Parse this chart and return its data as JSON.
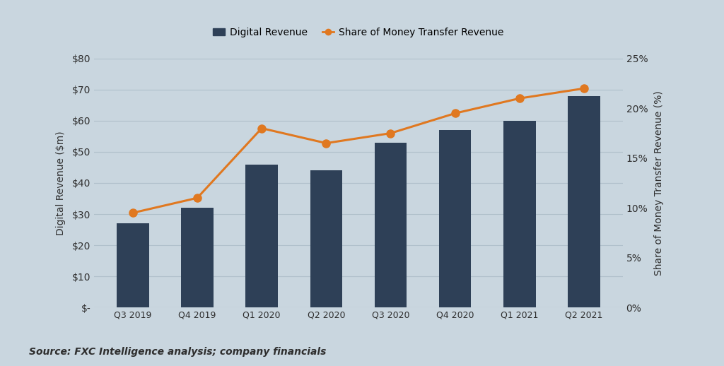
{
  "categories": [
    "Q3 2019",
    "Q4 2019",
    "Q1 2020",
    "Q2 2020",
    "Q3 2020",
    "Q4 2020",
    "Q1 2021",
    "Q2 2021"
  ],
  "digital_revenue": [
    27,
    32,
    46,
    44,
    53,
    57,
    60,
    68
  ],
  "share_of_revenue": [
    9.5,
    11.0,
    18.0,
    16.5,
    17.5,
    19.5,
    21.0,
    22.0
  ],
  "bar_color": "#2E4057",
  "line_color": "#E07820",
  "marker_color": "#E07820",
  "background_color": "#C9D6DF",
  "grid_color": "#B0C0CB",
  "text_color": "#2E2E2E",
  "ylabel_left": "Digital Revenue ($m)",
  "ylabel_right": "Share of Money Transfer Revenue (%)",
  "ylim_left": [
    0,
    80
  ],
  "ylim_right": [
    0,
    25
  ],
  "yticks_left": [
    0,
    10,
    20,
    30,
    40,
    50,
    60,
    70,
    80
  ],
  "ytick_labels_left": [
    "$-",
    "$10",
    "$20",
    "$30",
    "$40",
    "$50",
    "$60",
    "$70",
    "$80"
  ],
  "yticks_right": [
    0,
    5,
    10,
    15,
    20,
    25
  ],
  "ytick_labels_right": [
    "0%",
    "5%",
    "10%",
    "15%",
    "20%",
    "25%"
  ],
  "legend_bar_label": "Digital Revenue",
  "legend_line_label": "Share of Money Transfer Revenue",
  "source_text": "Source: FXC Intelligence analysis; company financials",
  "figsize": [
    10.24,
    5.18
  ],
  "dpi": 100
}
